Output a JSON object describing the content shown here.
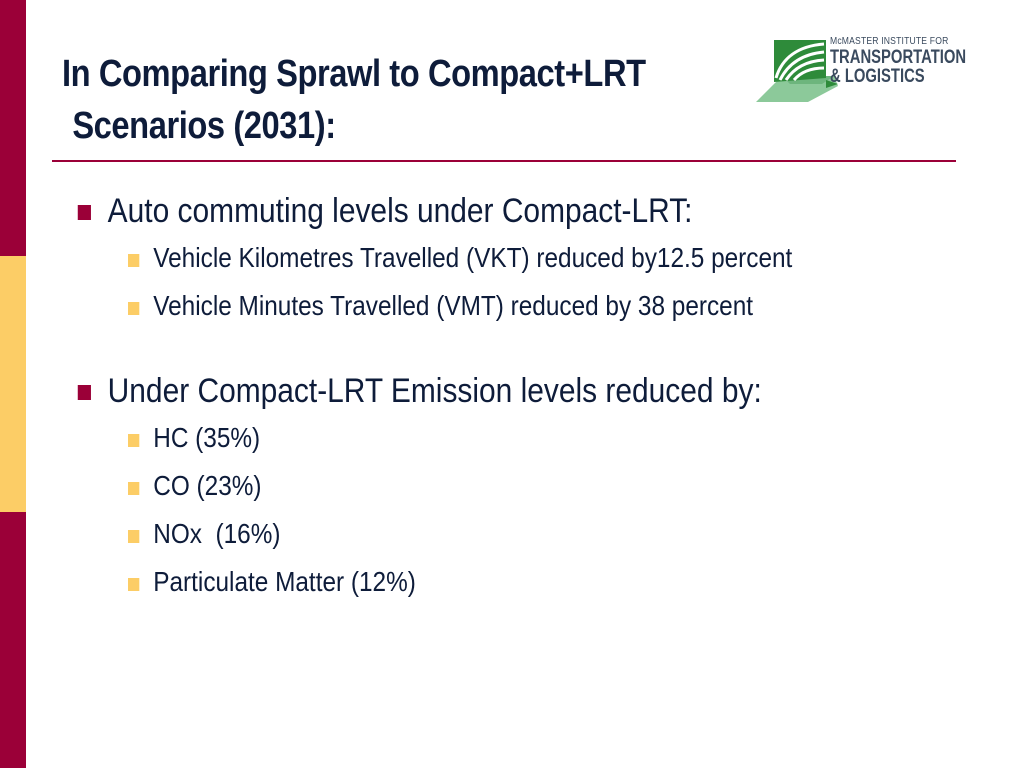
{
  "slide": {
    "title_line1": "In Comparing Sprawl to Compact+LRT",
    "title_line2": "Scenarios (2031):"
  },
  "logo": {
    "line1": "McMASTER INSTITUTE FOR",
    "line2": "TRANSPORTATION",
    "line3": "& LOGISTICS"
  },
  "bullets": [
    {
      "text": "Auto commuting levels under Compact-LRT:",
      "sub": [
        "Vehicle Kilometres Travelled (VKT) reduced by12.5 percent",
        "Vehicle Minutes Travelled (VMT) reduced by 38 percent"
      ]
    },
    {
      "text": "Under Compact-LRT Emission levels reduced by:",
      "sub": [
        "HC (35%)",
        "CO (23%)",
        "NOx  (16%)",
        "Particulate Matter (12%)"
      ]
    }
  ],
  "colors": {
    "accent_maroon": "#9b0038",
    "accent_gold": "#fccd66",
    "logo_green": "#2e8b3a",
    "text_dark": "#0e1c3a"
  },
  "icons": {
    "logo_mark": "green-leaf-road-icon"
  }
}
